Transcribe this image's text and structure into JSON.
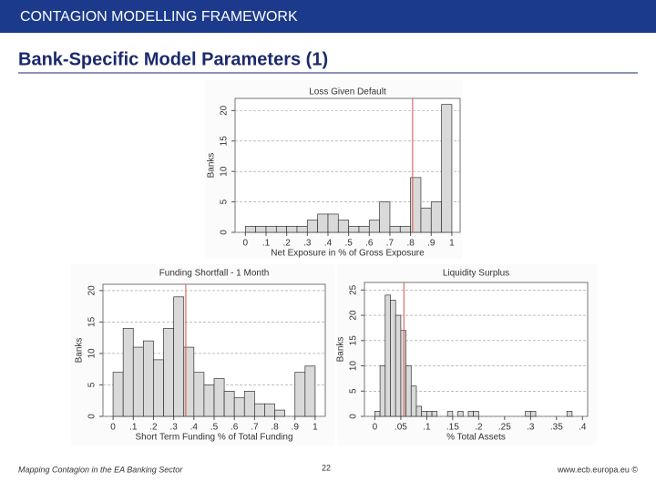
{
  "header": "CONTAGION MODELLING FRAMEWORK",
  "title": "Bank-Specific Model Parameters (1)",
  "footer": {
    "left": "Mapping Contagion in the EA Banking Sector",
    "page": "22",
    "right": "www.ecb.europa.eu ©"
  },
  "chart_data": [
    {
      "type": "histogram",
      "title": "Loss Given Default",
      "x_label": "Net Exposure in % of Gross Exposure",
      "y_label": "Banks",
      "bins": [
        0,
        0.05,
        0.1,
        0.15,
        0.2,
        0.25,
        0.3,
        0.35,
        0.4,
        0.45,
        0.5,
        0.55,
        0.6,
        0.65,
        0.7,
        0.75,
        0.8,
        0.85,
        0.9,
        0.95,
        1
      ],
      "values": [
        1,
        1,
        1,
        1,
        1,
        1,
        2,
        3,
        3,
        2,
        1,
        1,
        2,
        5,
        1,
        1,
        9,
        4,
        5,
        21
      ],
      "xlim": [
        -0.05,
        1.04
      ],
      "ylim": [
        0,
        22
      ],
      "xticks": [
        0,
        {
          "value": 0.1,
          "label": ".1"
        },
        {
          "value": 0.2,
          "label": ".2"
        },
        {
          "value": 0.3,
          "label": ".3"
        },
        {
          "value": 0.4,
          "label": ".4"
        },
        {
          "value": 0.5,
          "label": ".5"
        },
        {
          "value": 0.6,
          "label": ".6"
        },
        {
          "value": 0.7,
          "label": ".7"
        },
        {
          "value": 0.8,
          "label": ".8"
        },
        {
          "value": 0.9,
          "label": ".9"
        },
        1
      ],
      "yticks": [
        0,
        5,
        10,
        15,
        20
      ],
      "grid": true,
      "color": "#d9d9d9",
      "reference_line": 0.81,
      "reference_color": "#d9534f"
    },
    {
      "type": "histogram",
      "title": "Funding Shortfall - 1 Month",
      "x_label": "Short Term Funding % of Total Funding",
      "y_label": "Banks",
      "bins": [
        0,
        0.05,
        0.1,
        0.15,
        0.2,
        0.25,
        0.3,
        0.35,
        0.4,
        0.45,
        0.5,
        0.55,
        0.6,
        0.65,
        0.7,
        0.75,
        0.8,
        0.85,
        0.9,
        0.95,
        1
      ],
      "values": [
        7,
        14,
        11,
        12,
        9,
        14,
        19,
        11,
        7,
        5,
        6,
        4,
        3,
        4,
        2,
        2,
        1,
        0,
        7,
        8
      ],
      "xlim": [
        -0.05,
        1.05
      ],
      "ylim": [
        0,
        21
      ],
      "xticks": [
        0,
        {
          "value": 0.1,
          "label": ".1"
        },
        {
          "value": 0.2,
          "label": ".2"
        },
        {
          "value": 0.3,
          "label": ".3"
        },
        {
          "value": 0.4,
          "label": ".4"
        },
        {
          "value": 0.5,
          "label": ".5"
        },
        {
          "value": 0.6,
          "label": ".6"
        },
        {
          "value": 0.7,
          "label": ".7"
        },
        {
          "value": 0.8,
          "label": ".8"
        },
        {
          "value": 0.9,
          "label": ".9"
        },
        1
      ],
      "yticks": [
        0,
        5,
        10,
        15,
        20
      ],
      "grid": true,
      "color": "#d9d9d9",
      "reference_line": 0.36,
      "reference_color": "#d9534f"
    },
    {
      "type": "histogram",
      "title": "Liquidity Surplus",
      "x_label": "% Total Assets",
      "y_label": "Banks",
      "bins": [
        0,
        0.01,
        0.02,
        0.03,
        0.04,
        0.05,
        0.06,
        0.07,
        0.08,
        0.09,
        0.1,
        0.11,
        0.12,
        0.13,
        0.14,
        0.15,
        0.16,
        0.17,
        0.18,
        0.19,
        0.2,
        0.21,
        0.22,
        0.23,
        0.24,
        0.25,
        0.26,
        0.27,
        0.28,
        0.29,
        0.3,
        0.31,
        0.32,
        0.33,
        0.34,
        0.35,
        0.36,
        0.37,
        0.38,
        0.39,
        0.4
      ],
      "values": [
        1,
        10,
        24,
        23,
        20,
        17,
        10,
        6,
        2,
        1,
        1,
        1,
        0,
        0,
        1,
        0,
        1,
        0,
        1,
        1,
        0,
        0,
        0,
        0,
        0,
        0,
        0,
        0,
        0,
        1,
        1,
        0,
        0,
        0,
        0,
        0,
        0,
        1,
        0,
        0
      ],
      "xlim": [
        -0.02,
        0.41
      ],
      "ylim": [
        0,
        26.5
      ],
      "xticks": [
        0,
        {
          "value": 0.05,
          "label": ".05"
        },
        {
          "value": 0.1,
          "label": ".1"
        },
        {
          "value": 0.15,
          "label": ".15"
        },
        {
          "value": 0.2,
          "label": ".2"
        },
        {
          "value": 0.25,
          "label": ".25"
        },
        {
          "value": 0.3,
          "label": ".3"
        },
        {
          "value": 0.35,
          "label": ".35"
        },
        {
          "value": 0.4,
          "label": ".4"
        }
      ],
      "yticks": [
        0,
        5,
        10,
        15,
        20,
        25
      ],
      "grid": true,
      "color": "#d9d9d9",
      "reference_line": 0.056,
      "reference_color": "#d9534f"
    }
  ]
}
